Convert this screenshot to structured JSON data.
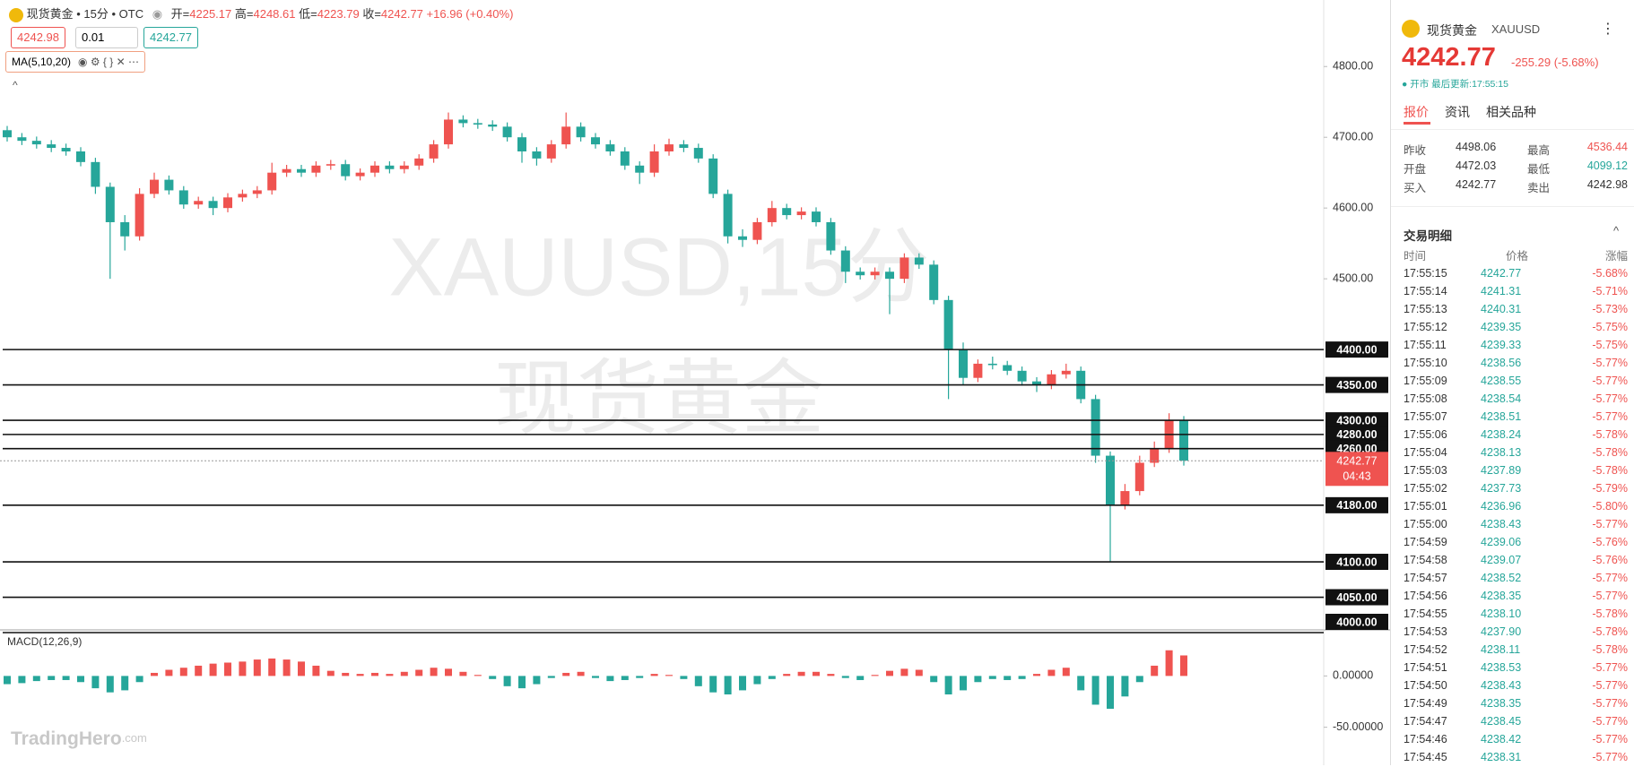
{
  "toolbar": {
    "symbol": "现货黄金 • 15分 • OTC",
    "ohlc": [
      {
        "k": "开=",
        "v": "4225.17"
      },
      {
        "k": "高=",
        "v": "4248.61"
      },
      {
        "k": "低=",
        "v": "4223.79"
      },
      {
        "k": "收=",
        "v": "4242.77"
      }
    ],
    "change": "+16.96 (+0.40%)",
    "sell": "4242.98",
    "lot": "0.01",
    "buy": "4242.77",
    "indicator": "MA(5,10,20)"
  },
  "watermark": [
    "XAUUSD,15分",
    "现货黄金"
  ],
  "chart_data": [
    {
      "type": "candlestick",
      "up_color": "#ef5350",
      "down_color": "#26a69a",
      "ohlc": [
        [
          4710,
          4716,
          4694,
          4700
        ],
        [
          4700,
          4706,
          4689,
          4695
        ],
        [
          4695,
          4701,
          4684,
          4690
        ],
        [
          4690,
          4696,
          4679,
          4685
        ],
        [
          4685,
          4691,
          4674,
          4680
        ],
        [
          4680,
          4686,
          4659,
          4665
        ],
        [
          4665,
          4671,
          4620,
          4630
        ],
        [
          4630,
          4636,
          4500,
          4580
        ],
        [
          4580,
          4590,
          4540,
          4560
        ],
        [
          4560,
          4628,
          4554,
          4620
        ],
        [
          4620,
          4650,
          4614,
          4640
        ],
        [
          4640,
          4646,
          4619,
          4625
        ],
        [
          4625,
          4631,
          4599,
          4605
        ],
        [
          4605,
          4616,
          4599,
          4610
        ],
        [
          4610,
          4616,
          4590,
          4600
        ],
        [
          4600,
          4621,
          4594,
          4615
        ],
        [
          4615,
          4626,
          4609,
          4620
        ],
        [
          4620,
          4631,
          4614,
          4625
        ],
        [
          4625,
          4664,
          4619,
          4650
        ],
        [
          4650,
          4661,
          4644,
          4655
        ],
        [
          4655,
          4661,
          4644,
          4650
        ],
        [
          4650,
          4666,
          4644,
          4660
        ],
        [
          4660,
          4668,
          4654,
          4662
        ],
        [
          4662,
          4668,
          4639,
          4645
        ],
        [
          4645,
          4656,
          4639,
          4650
        ],
        [
          4650,
          4666,
          4644,
          4660
        ],
        [
          4660,
          4666,
          4649,
          4655
        ],
        [
          4655,
          4666,
          4649,
          4660
        ],
        [
          4660,
          4676,
          4654,
          4670
        ],
        [
          4670,
          4696,
          4664,
          4690
        ],
        [
          4690,
          4735,
          4684,
          4725
        ],
        [
          4725,
          4731,
          4714,
          4720
        ],
        [
          4720,
          4726,
          4712,
          4718
        ],
        [
          4718,
          4724,
          4709,
          4715
        ],
        [
          4715,
          4721,
          4694,
          4700
        ],
        [
          4700,
          4706,
          4664,
          4680
        ],
        [
          4680,
          4686,
          4660,
          4670
        ],
        [
          4670,
          4696,
          4664,
          4690
        ],
        [
          4690,
          4735,
          4684,
          4715
        ],
        [
          4715,
          4721,
          4694,
          4700
        ],
        [
          4700,
          4706,
          4684,
          4690
        ],
        [
          4690,
          4696,
          4674,
          4680
        ],
        [
          4680,
          4686,
          4654,
          4660
        ],
        [
          4660,
          4666,
          4634,
          4650
        ],
        [
          4650,
          4690,
          4644,
          4680
        ],
        [
          4680,
          4698,
          4674,
          4690
        ],
        [
          4690,
          4696,
          4679,
          4685
        ],
        [
          4685,
          4691,
          4664,
          4670
        ],
        [
          4670,
          4676,
          4614,
          4620
        ],
        [
          4620,
          4626,
          4550,
          4560
        ],
        [
          4560,
          4570,
          4545,
          4555
        ],
        [
          4555,
          4586,
          4549,
          4580
        ],
        [
          4580,
          4610,
          4574,
          4600
        ],
        [
          4600,
          4606,
          4584,
          4590
        ],
        [
          4590,
          4601,
          4584,
          4595
        ],
        [
          4595,
          4601,
          4574,
          4580
        ],
        [
          4580,
          4586,
          4534,
          4540
        ],
        [
          4540,
          4546,
          4494,
          4510
        ],
        [
          4510,
          4516,
          4499,
          4505
        ],
        [
          4505,
          4516,
          4499,
          4510
        ],
        [
          4510,
          4516,
          4450,
          4500
        ],
        [
          4500,
          4536,
          4494,
          4530
        ],
        [
          4530,
          4536,
          4514,
          4520
        ],
        [
          4520,
          4526,
          4464,
          4470
        ],
        [
          4470,
          4476,
          4330,
          4400
        ],
        [
          4400,
          4410,
          4350,
          4360
        ],
        [
          4360,
          4386,
          4354,
          4380
        ],
        [
          4380,
          4390,
          4372,
          4378
        ],
        [
          4378,
          4384,
          4364,
          4370
        ],
        [
          4370,
          4376,
          4349,
          4355
        ],
        [
          4355,
          4361,
          4340,
          4350
        ],
        [
          4350,
          4371,
          4344,
          4365
        ],
        [
          4365,
          4380,
          4359,
          4370
        ],
        [
          4370,
          4376,
          4324,
          4330
        ],
        [
          4330,
          4336,
          4240,
          4250
        ],
        [
          4250,
          4256,
          4100,
          4180
        ],
        [
          4180,
          4210,
          4174,
          4200
        ],
        [
          4200,
          4250,
          4194,
          4240
        ],
        [
          4240,
          4270,
          4234,
          4260
        ],
        [
          4260,
          4310,
          4254,
          4300
        ],
        [
          4300,
          4306,
          4236,
          4243
        ]
      ],
      "ylim": [
        4000,
        4894
      ],
      "yticks": [
        {
          "value": 4500,
          "label": "4500.00"
        },
        {
          "value": 4600,
          "label": "4600.00"
        },
        {
          "value": 4700,
          "label": "4700.00"
        },
        {
          "value": 4800,
          "label": "4800.00"
        }
      ],
      "levels": [
        {
          "value": 4400,
          "label": "4400.00"
        },
        {
          "value": 4350,
          "label": "4350.00"
        },
        {
          "value": 4300,
          "label": "4300.00"
        },
        {
          "value": 4280,
          "label": "4280.00"
        },
        {
          "value": 4260,
          "label": "4260.00"
        },
        {
          "value": 4180,
          "label": "4180.00"
        },
        {
          "value": 4100,
          "label": "4100.00"
        },
        {
          "value": 4050,
          "label": "4050.00"
        },
        {
          "value": 4000,
          "label": "4000.00"
        }
      ],
      "last_price": {
        "value": 4242.77,
        "label": "4242.77"
      },
      "countdown": "04:43"
    },
    {
      "type": "bar",
      "title": "MACD(12,26,9)",
      "up_color": "#ef5350",
      "down_color": "#26a69a",
      "values": [
        -8,
        -7,
        -5,
        -4,
        -4,
        -6,
        -12,
        -16,
        -14,
        -6,
        3,
        6,
        8,
        10,
        12,
        13,
        14,
        16,
        17,
        16,
        14,
        10,
        5,
        3,
        2,
        3,
        2,
        4,
        6,
        8,
        7,
        4,
        1,
        -3,
        -10,
        -12,
        -8,
        -2,
        3,
        4,
        -2,
        -5,
        -4,
        -2,
        2,
        1,
        -3,
        -10,
        -16,
        -18,
        -14,
        -8,
        -3,
        2,
        4,
        4,
        2,
        -2,
        -4,
        1,
        5,
        7,
        6,
        -6,
        -18,
        -14,
        -6,
        -3,
        -4,
        -3,
        2,
        6,
        8,
        -14,
        -28,
        -32,
        -20,
        -6,
        10,
        25,
        20
      ],
      "ylim": [
        -87,
        44
      ],
      "yticks": [
        {
          "value": 0,
          "label": "0.00000"
        },
        {
          "value": -50,
          "label": "-50.00000"
        }
      ]
    }
  ],
  "logo": {
    "name": "TradingHero",
    "suffix": ".com"
  },
  "panel": {
    "name": "现货黄金",
    "code": "XAUUSD",
    "price": "4242.77",
    "change": "-255.29 (-5.68%)",
    "status": "● 开市 最后更新:17:55:15",
    "tabs": [
      "报价",
      "资讯",
      "相关品种"
    ],
    "stats": [
      [
        "昨收",
        "4498.06",
        "最高",
        "4536.44"
      ],
      [
        "开盘",
        "4472.03",
        "最低",
        "4099.12"
      ],
      [
        "买入",
        "4242.77",
        "卖出",
        "4242.98"
      ]
    ],
    "trades": {
      "title": "交易明细",
      "header": [
        "时间",
        "价格",
        "涨幅"
      ],
      "rows": [
        [
          "17:55:15",
          "4242.77",
          "-5.68%"
        ],
        [
          "17:55:14",
          "4241.31",
          "-5.71%"
        ],
        [
          "17:55:13",
          "4240.31",
          "-5.73%"
        ],
        [
          "17:55:12",
          "4239.35",
          "-5.75%"
        ],
        [
          "17:55:11",
          "4239.33",
          "-5.75%"
        ],
        [
          "17:55:10",
          "4238.56",
          "-5.77%"
        ],
        [
          "17:55:09",
          "4238.55",
          "-5.77%"
        ],
        [
          "17:55:08",
          "4238.54",
          "-5.77%"
        ],
        [
          "17:55:07",
          "4238.51",
          "-5.77%"
        ],
        [
          "17:55:06",
          "4238.24",
          "-5.78%"
        ],
        [
          "17:55:04",
          "4238.13",
          "-5.78%"
        ],
        [
          "17:55:03",
          "4237.89",
          "-5.78%"
        ],
        [
          "17:55:02",
          "4237.73",
          "-5.79%"
        ],
        [
          "17:55:01",
          "4236.96",
          "-5.80%"
        ],
        [
          "17:55:00",
          "4238.43",
          "-5.77%"
        ],
        [
          "17:54:59",
          "4239.06",
          "-5.76%"
        ],
        [
          "17:54:58",
          "4239.07",
          "-5.76%"
        ],
        [
          "17:54:57",
          "4238.52",
          "-5.77%"
        ],
        [
          "17:54:56",
          "4238.35",
          "-5.77%"
        ],
        [
          "17:54:55",
          "4238.10",
          "-5.78%"
        ],
        [
          "17:54:53",
          "4237.90",
          "-5.78%"
        ],
        [
          "17:54:52",
          "4238.11",
          "-5.78%"
        ],
        [
          "17:54:51",
          "4238.53",
          "-5.77%"
        ],
        [
          "17:54:50",
          "4238.43",
          "-5.77%"
        ],
        [
          "17:54:49",
          "4238.35",
          "-5.77%"
        ],
        [
          "17:54:47",
          "4238.45",
          "-5.77%"
        ],
        [
          "17:54:46",
          "4238.42",
          "-5.77%"
        ],
        [
          "17:54:45",
          "4238.31",
          "-5.77%"
        ]
      ]
    }
  }
}
